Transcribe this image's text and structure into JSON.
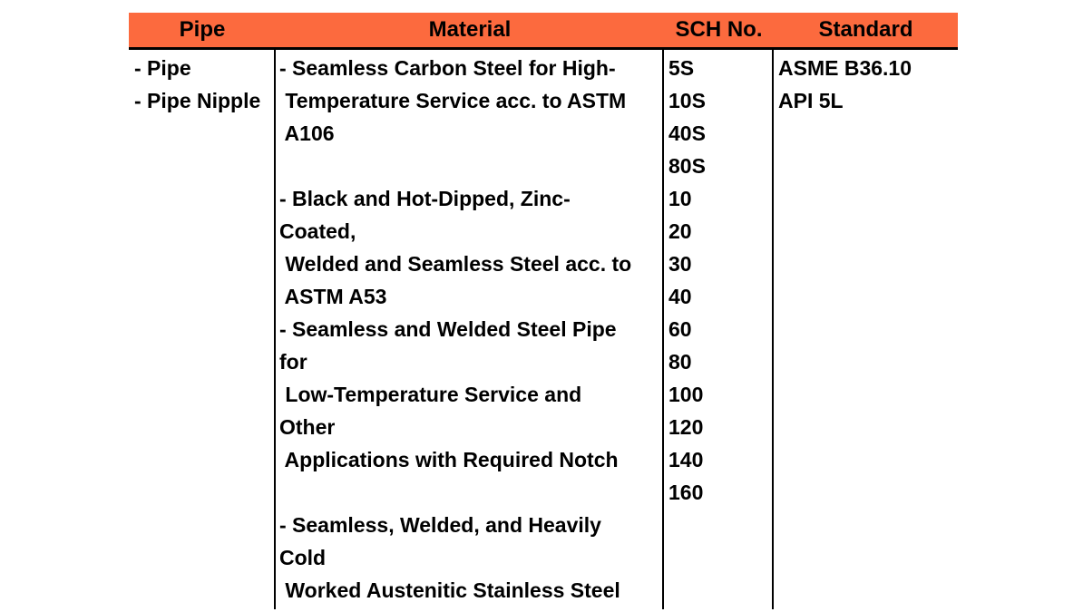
{
  "colors": {
    "header_bg": "#FC6A3E",
    "border": "#000000",
    "text": "#000000",
    "page_bg": "#FFFFFF"
  },
  "table": {
    "headers": [
      "Pipe",
      "Material",
      "SCH No.",
      "Standard"
    ],
    "columns": {
      "pipe": {
        "lines": [
          "- Pipe",
          "- Pipe Nipple"
        ]
      },
      "material": {
        "lines": [
          "- Seamless Carbon Steel for High-",
          " Temperature Service acc. to ASTM",
          " A106",
          "",
          "- Black and Hot-Dipped, Zinc-",
          "Coated,",
          " Welded and Seamless Steel acc. to",
          " ASTM A53",
          "- Seamless and Welded Steel Pipe",
          "for",
          " Low-Temperature Service and",
          "Other",
          " Applications with Required Notch",
          "",
          "- Seamless, Welded, and Heavily",
          "Cold",
          " Worked Austenitic Stainless Steel"
        ]
      },
      "sch_no": {
        "lines": [
          "5S",
          "10S",
          "40S",
          "80S",
          "10",
          "20",
          "30",
          "40",
          "60",
          "80",
          "100",
          "120",
          "140",
          "160"
        ]
      },
      "standard": {
        "lines": [
          "ASME B36.10",
          "API 5L"
        ]
      }
    }
  }
}
